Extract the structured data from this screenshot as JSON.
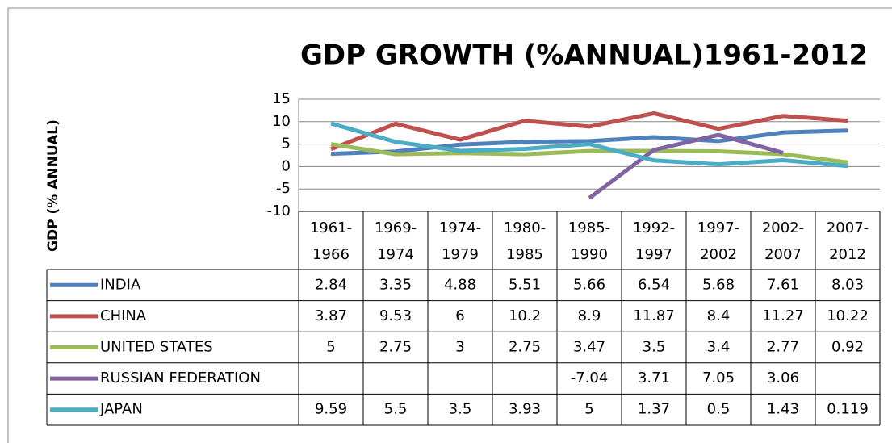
{
  "chart_data": {
    "type": "line",
    "title": "GDP GROWTH (%ANNUAL)1961-2012",
    "y_label": "GDP (% ANNUAL)",
    "categories": [
      "1961-1966",
      "1969-1974",
      "1974-1979",
      "1980-1985",
      "1985-1990",
      "1992-1997",
      "1997-2002",
      "2002-2007",
      "2007-2012"
    ],
    "series": [
      {
        "name": "INDIA",
        "color": "#4f81bd",
        "values": [
          2.84,
          3.35,
          4.88,
          5.51,
          5.66,
          6.54,
          5.68,
          7.61,
          8.03
        ]
      },
      {
        "name": "CHINA",
        "color": "#c0504d",
        "values": [
          3.87,
          9.53,
          6,
          10.2,
          8.9,
          11.87,
          8.4,
          11.27,
          10.22
        ]
      },
      {
        "name": "UNITED STATES",
        "color": "#9bbb59",
        "values": [
          5,
          2.75,
          3,
          2.75,
          3.47,
          3.5,
          3.4,
          2.77,
          0.92
        ]
      },
      {
        "name": "RUSSIAN FEDERATION",
        "color": "#8064a2",
        "values": [
          null,
          null,
          null,
          null,
          -7.04,
          3.71,
          7.05,
          3.06,
          null
        ]
      },
      {
        "name": "JAPAN",
        "color": "#4bacc6",
        "values": [
          9.59,
          5.5,
          3.5,
          3.93,
          5,
          1.37,
          0.5,
          1.43,
          0.119
        ]
      }
    ],
    "ylim": [
      -10,
      15
    ],
    "yticks": [
      -10,
      -5,
      0,
      5,
      10,
      15
    ],
    "grid": true,
    "data_table": true
  }
}
